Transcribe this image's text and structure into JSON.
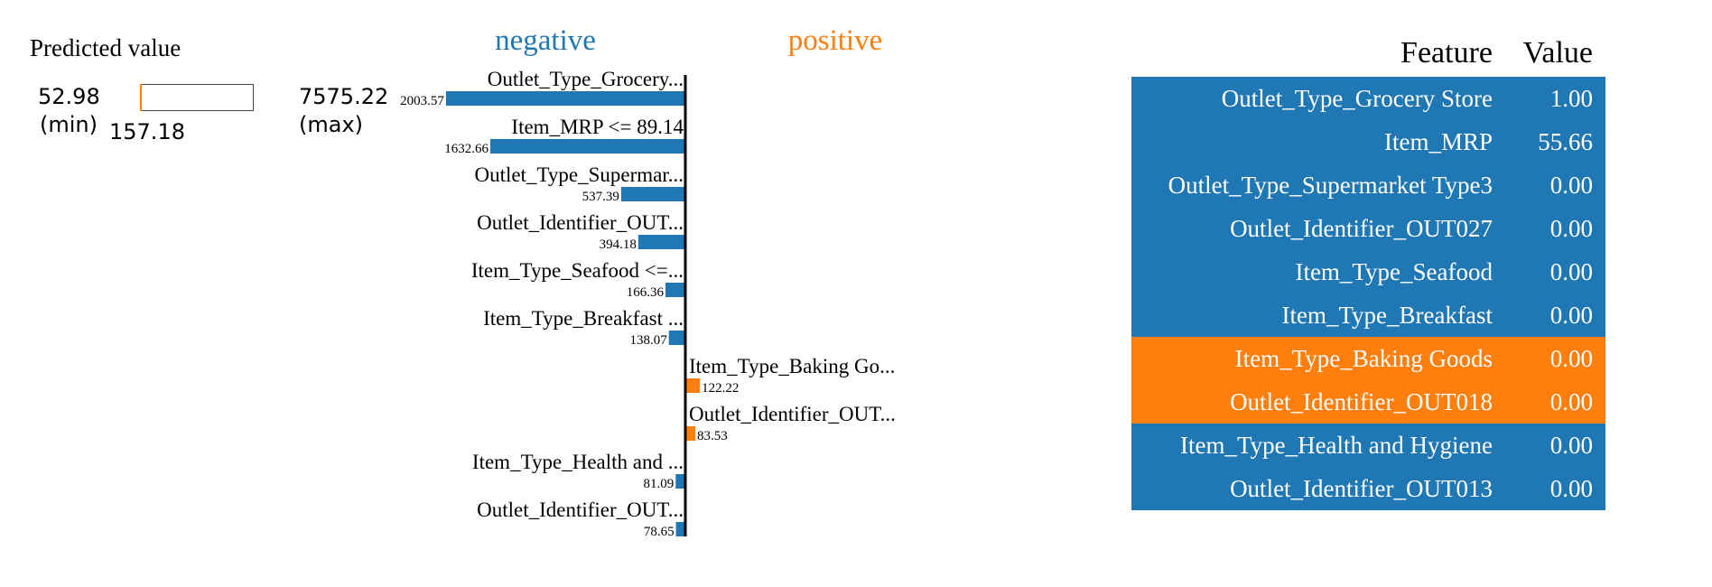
{
  "predicted": {
    "title": "Predicted value",
    "min_value": "52.98",
    "min_label": "(min)",
    "max_value": "7575.22",
    "max_label": "(max)",
    "value": "157.18",
    "fraction": 0.0139
  },
  "colors": {
    "negative": "#1f77b4",
    "positive": "#ff7f0e"
  },
  "chart_data": {
    "type": "bar",
    "orientation": "horizontal",
    "legend": [
      "negative",
      "positive"
    ],
    "categories": [
      "Outlet_Type_Grocery...",
      "Item_MRP <= 89.14",
      "Outlet_Type_Supermar...",
      "Outlet_Identifier_OUT...",
      "Item_Type_Seafood <=...",
      "Item_Type_Breakfast ...",
      "Item_Type_Baking Go...",
      "Outlet_Identifier_OUT...",
      "Item_Type_Health and ...",
      "Outlet_Identifier_OUT..."
    ],
    "values": [
      -2003.57,
      -1632.66,
      -537.39,
      -394.18,
      -166.36,
      -138.07,
      122.22,
      83.53,
      -81.09,
      -78.65
    ],
    "value_labels": [
      "2003.57",
      "1632.66",
      "537.39",
      "394.18",
      "166.36",
      "138.07",
      "122.22",
      "83.53",
      "81.09",
      "78.65"
    ]
  },
  "table": {
    "headers": {
      "feature": "Feature",
      "value": "Value"
    },
    "rows": [
      {
        "feature": "Outlet_Type_Grocery Store",
        "value": "1.00",
        "effect": "negative"
      },
      {
        "feature": "Item_MRP",
        "value": "55.66",
        "effect": "negative"
      },
      {
        "feature": "Outlet_Type_Supermarket Type3",
        "value": "0.00",
        "effect": "negative"
      },
      {
        "feature": "Outlet_Identifier_OUT027",
        "value": "0.00",
        "effect": "negative"
      },
      {
        "feature": "Item_Type_Seafood",
        "value": "0.00",
        "effect": "negative"
      },
      {
        "feature": "Item_Type_Breakfast",
        "value": "0.00",
        "effect": "negative"
      },
      {
        "feature": "Item_Type_Baking Goods",
        "value": "0.00",
        "effect": "positive"
      },
      {
        "feature": "Outlet_Identifier_OUT018",
        "value": "0.00",
        "effect": "positive"
      },
      {
        "feature": "Item_Type_Health and Hygiene",
        "value": "0.00",
        "effect": "negative"
      },
      {
        "feature": "Outlet_Identifier_OUT013",
        "value": "0.00",
        "effect": "negative"
      }
    ]
  }
}
